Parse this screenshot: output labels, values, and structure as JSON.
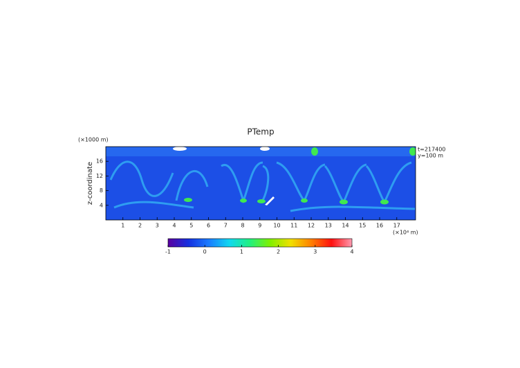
{
  "chart_data": {
    "type": "heatmap",
    "title": "PTemp",
    "y_label": "z-coordinate",
    "y_unit": "(×1000 m)",
    "x_unit": "(×10⁴ m)",
    "annotations": [
      "t=217400",
      "y=100 m"
    ],
    "xlim": [
      0,
      18.1
    ],
    "xticks": [
      1,
      2,
      3,
      4,
      5,
      6,
      7,
      8,
      9,
      10,
      11,
      12,
      13,
      14,
      15,
      16,
      17
    ],
    "ylim": [
      0,
      20
    ],
    "yticks": [
      4,
      8,
      12,
      16
    ],
    "colorbar": {
      "lim": [
        -1,
        4
      ],
      "ticks": [
        -1,
        0,
        1,
        2,
        3,
        4
      ],
      "colors": [
        "#5a00a0",
        "#1530e0",
        "#1a7cff",
        "#10d8f0",
        "#20f080",
        "#80f000",
        "#f0e000",
        "#ff8000",
        "#ff1010",
        "#ff9ab0"
      ]
    }
  }
}
